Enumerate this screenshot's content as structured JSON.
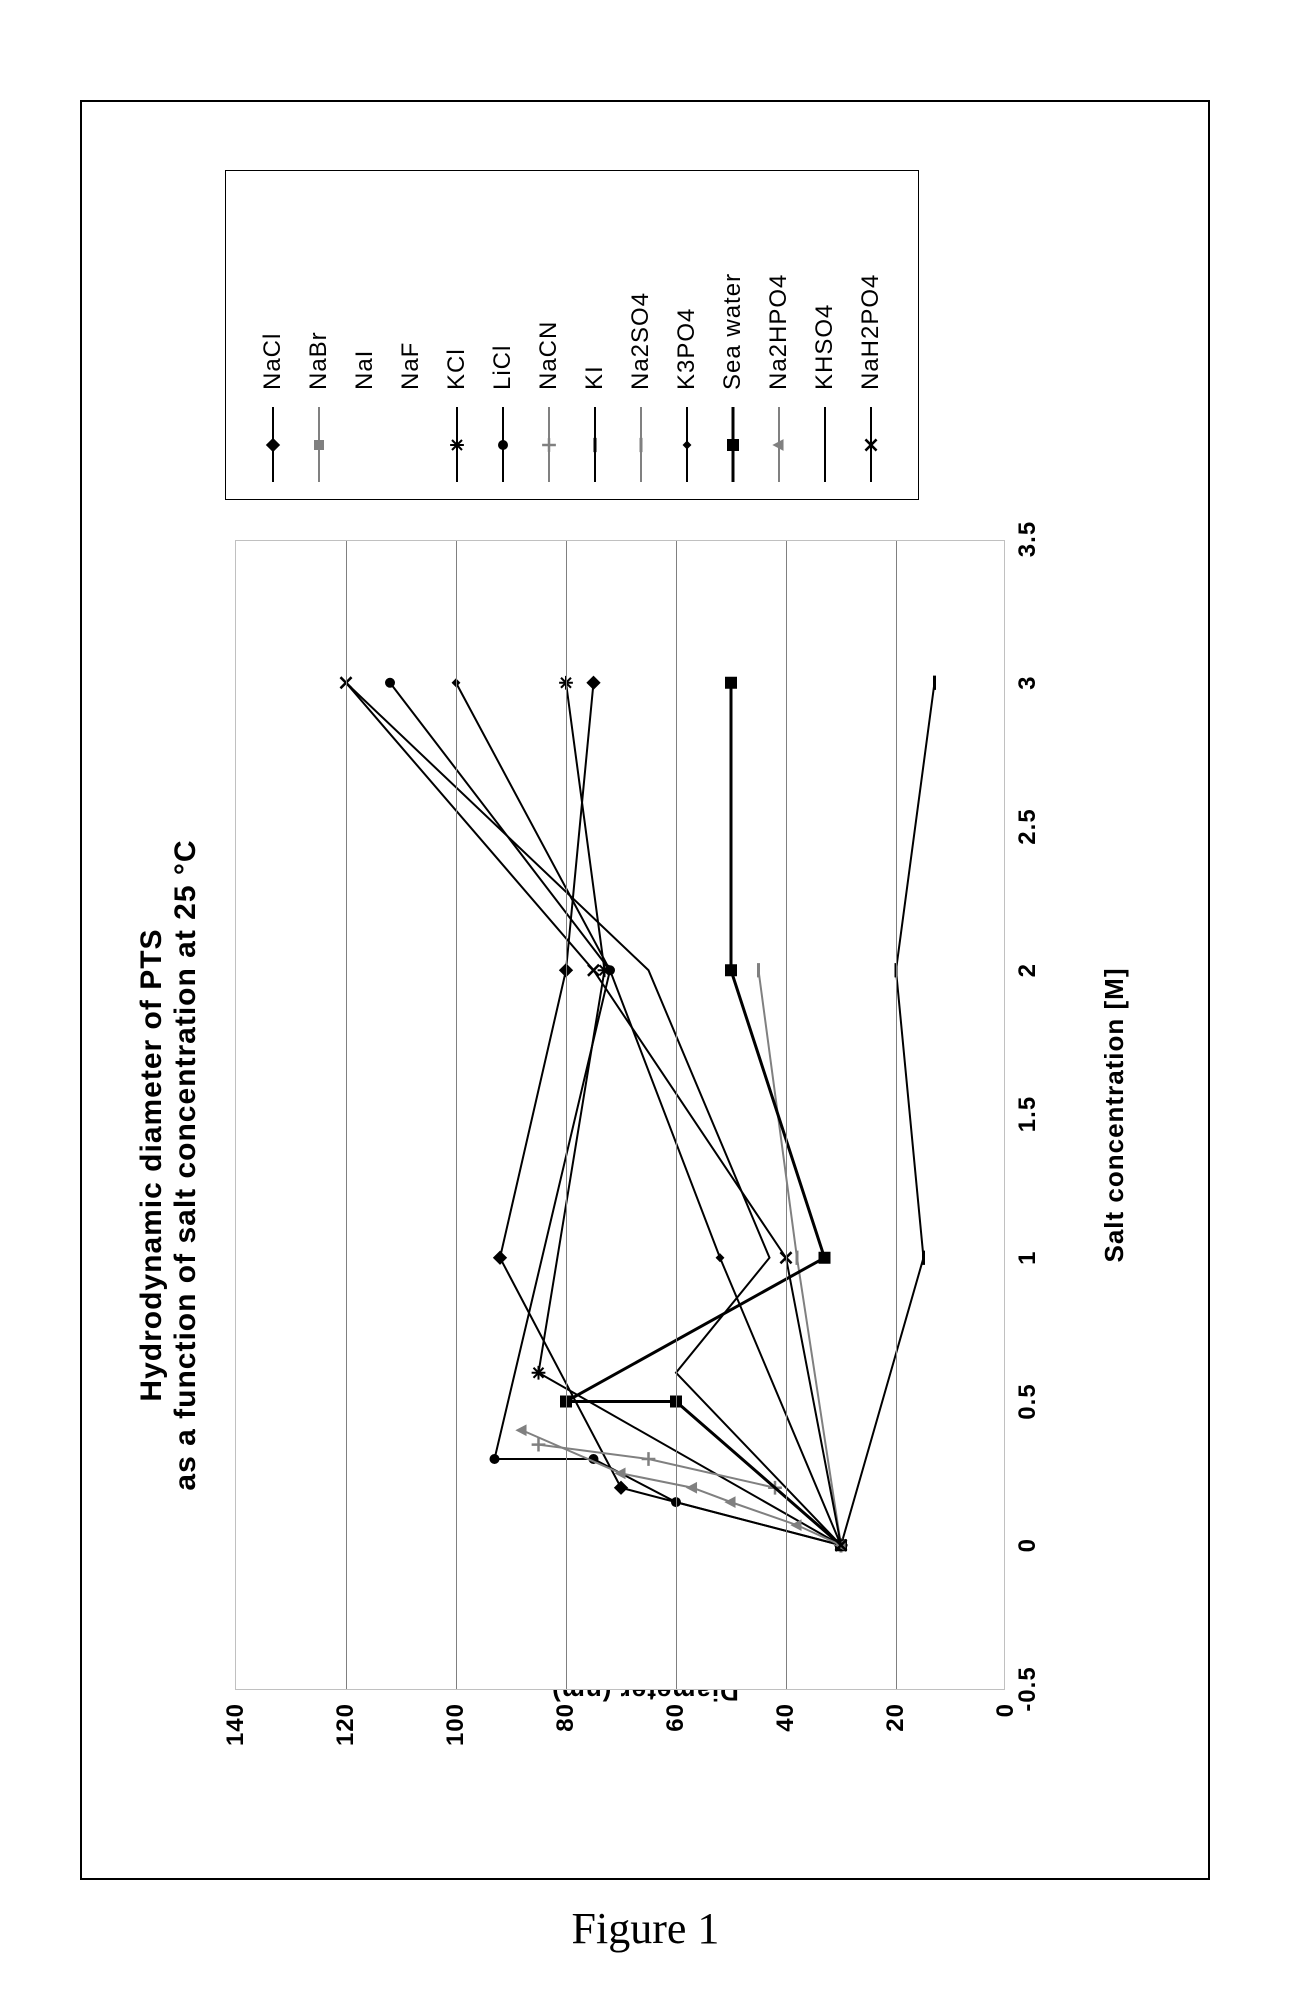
{
  "caption": "Figure 1",
  "chart": {
    "type": "line",
    "title_line1": "Hydrodynamic diameter of PTS",
    "title_line2": "as a function of salt concentration at 25 °C",
    "xlabel": "Salt concentration [M]",
    "ylabel": "Diameter (nm)",
    "xlim": [
      -0.5,
      3.5
    ],
    "ylim": [
      0,
      140
    ],
    "xtick_step": 0.5,
    "ytick_step": 20,
    "xticks": [
      "-0.5",
      "0",
      "0.5",
      "1",
      "1.5",
      "2",
      "2.5",
      "3",
      "3.5"
    ],
    "yticks": [
      "0",
      "20",
      "40",
      "60",
      "80",
      "100",
      "120",
      "140"
    ],
    "background_color": "#ffffff",
    "grid_color": "#808080",
    "grid_horizontal": true,
    "grid_vertical": false,
    "title_fontsize": 30,
    "label_fontsize": 26,
    "tick_fontsize": 24,
    "legend_fontsize": 24,
    "series": [
      {
        "name": "NaCl",
        "color": "#000000",
        "marker": "diamond",
        "marker_size": 10,
        "line_width": 2,
        "line_visible": true,
        "points": [
          [
            0,
            30
          ],
          [
            0.2,
            70
          ],
          [
            1,
            92
          ],
          [
            2,
            80
          ],
          [
            3,
            75
          ]
        ]
      },
      {
        "name": "NaBr",
        "color": "#808080",
        "marker": "square-filled",
        "marker_size": 10,
        "line_width": 2,
        "line_visible": true,
        "points": [
          [
            0,
            30
          ]
        ]
      },
      {
        "name": "NaI",
        "color": "#808080",
        "marker": "none",
        "marker_size": 0,
        "line_width": 2,
        "line_visible": false,
        "points": [
          [
            0,
            30
          ]
        ]
      },
      {
        "name": "NaF",
        "color": "#000000",
        "marker": "none",
        "marker_size": 0,
        "line_width": 2,
        "line_visible": false,
        "points": [
          [
            0,
            30
          ]
        ]
      },
      {
        "name": "KCl",
        "color": "#000000",
        "marker": "star",
        "marker_size": 11,
        "line_width": 2,
        "line_visible": true,
        "points": [
          [
            0,
            30
          ],
          [
            0.6,
            85
          ],
          [
            2,
            73
          ],
          [
            3,
            80
          ]
        ]
      },
      {
        "name": "LiCl",
        "color": "#000000",
        "marker": "circle",
        "marker_size": 10,
        "line_width": 2,
        "line_visible": true,
        "points": [
          [
            0,
            30
          ],
          [
            0.15,
            60
          ],
          [
            0.3,
            75
          ],
          [
            0.3,
            93
          ],
          [
            2,
            72
          ],
          [
            3,
            112
          ]
        ]
      },
      {
        "name": "NaCN",
        "color": "#808080",
        "marker": "plus",
        "marker_size": 11,
        "line_width": 2,
        "line_visible": true,
        "points": [
          [
            0,
            30
          ],
          [
            0.2,
            42
          ],
          [
            0.3,
            65
          ],
          [
            0.35,
            85
          ]
        ]
      },
      {
        "name": "KI",
        "color": "#000000",
        "marker": "dash",
        "marker_size": 10,
        "line_width": 2,
        "line_visible": true,
        "points": [
          [
            0,
            30
          ],
          [
            1,
            15
          ],
          [
            2,
            20
          ],
          [
            3,
            13
          ]
        ]
      },
      {
        "name": "Na2SO4",
        "color": "#808080",
        "marker": "dash",
        "marker_size": 10,
        "line_width": 2,
        "line_visible": true,
        "points": [
          [
            0,
            30
          ],
          [
            1,
            38
          ],
          [
            2,
            45
          ]
        ]
      },
      {
        "name": "K3PO4",
        "color": "#000000",
        "marker": "diamond-small",
        "marker_size": 8,
        "line_width": 2,
        "line_visible": true,
        "points": [
          [
            0,
            30
          ],
          [
            1,
            52
          ],
          [
            2,
            72
          ],
          [
            3,
            100
          ]
        ]
      },
      {
        "name": "Sea water",
        "color": "#000000",
        "marker": "square-filled",
        "marker_size": 12,
        "line_width": 3,
        "line_visible": true,
        "points": [
          [
            0,
            30
          ],
          [
            0.5,
            60
          ],
          [
            0.5,
            80
          ],
          [
            1,
            33
          ],
          [
            2,
            50
          ],
          [
            3,
            50
          ]
        ]
      },
      {
        "name": "Na2HPO4",
        "color": "#808080",
        "marker": "triangle",
        "marker_size": 10,
        "line_width": 2,
        "line_visible": true,
        "points": [
          [
            0,
            30
          ],
          [
            0.07,
            38
          ],
          [
            0.15,
            50
          ],
          [
            0.2,
            57
          ],
          [
            0.25,
            70
          ],
          [
            0.4,
            88
          ]
        ]
      },
      {
        "name": "KHSO4",
        "color": "#000000",
        "marker": "none",
        "marker_size": 0,
        "line_width": 2,
        "line_visible": true,
        "points": [
          [
            0,
            30
          ],
          [
            0.6,
            60
          ],
          [
            1,
            43
          ],
          [
            2,
            65
          ],
          [
            3,
            120
          ]
        ]
      },
      {
        "name": "NaH2PO4",
        "color": "#000000",
        "marker": "x",
        "marker_size": 10,
        "line_width": 2,
        "line_visible": true,
        "points": [
          [
            0,
            30
          ],
          [
            1,
            40
          ],
          [
            2,
            75
          ],
          [
            3,
            120
          ]
        ]
      }
    ]
  }
}
